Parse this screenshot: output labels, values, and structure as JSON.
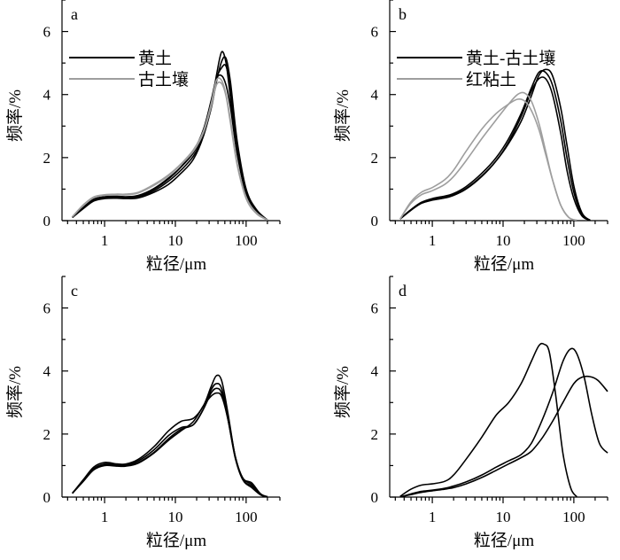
{
  "chart_data": [
    {
      "type": "line",
      "panel": "a",
      "xlabel": "粒径/μm",
      "ylabel": "频率/%",
      "xscale": "log",
      "xlim": [
        0.25,
        300
      ],
      "ylim": [
        0,
        7
      ],
      "xticks": [
        {
          "v": 1,
          "label": "1"
        },
        {
          "v": 10,
          "label": "10"
        },
        {
          "v": 100,
          "label": "100"
        }
      ],
      "yticks": [
        {
          "v": 0,
          "label": "0"
        },
        {
          "v": 2,
          "label": "2"
        },
        {
          "v": 4,
          "label": "4"
        },
        {
          "v": 6,
          "label": "6"
        }
      ],
      "legend": [
        {
          "label": "黄土",
          "color": "#000000"
        },
        {
          "label": "古土壤",
          "color": "#9e9e9e"
        }
      ],
      "series": [
        {
          "color": "#000000",
          "x": [
            0.35,
            0.5,
            0.7,
            1,
            1.5,
            2,
            3,
            5,
            8,
            12,
            18,
            25,
            32,
            38,
            45,
            52,
            60,
            75,
            100,
            140,
            200
          ],
          "y": [
            0.1,
            0.4,
            0.65,
            0.72,
            0.73,
            0.72,
            0.75,
            0.95,
            1.25,
            1.6,
            2.05,
            2.7,
            3.6,
            4.6,
            5.35,
            5.0,
            3.9,
            2.2,
            0.9,
            0.3,
            0.02
          ]
        },
        {
          "color": "#000000",
          "x": [
            0.35,
            0.5,
            0.7,
            1,
            1.5,
            2,
            3,
            5,
            8,
            12,
            18,
            25,
            32,
            38,
            45,
            52,
            60,
            75,
            100,
            140,
            200
          ],
          "y": [
            0.1,
            0.42,
            0.68,
            0.76,
            0.77,
            0.76,
            0.8,
            1.02,
            1.35,
            1.7,
            2.15,
            2.75,
            3.55,
            4.4,
            5.05,
            5.15,
            4.4,
            2.5,
            1.0,
            0.35,
            0.02
          ]
        },
        {
          "color": "#000000",
          "x": [
            0.35,
            0.5,
            0.7,
            1,
            1.5,
            2,
            3,
            5,
            8,
            12,
            18,
            25,
            32,
            38,
            45,
            52,
            60,
            75,
            100,
            140,
            200
          ],
          "y": [
            0.1,
            0.4,
            0.66,
            0.75,
            0.76,
            0.75,
            0.78,
            1.0,
            1.32,
            1.7,
            2.2,
            2.9,
            3.8,
            4.5,
            4.6,
            4.3,
            3.6,
            2.1,
            0.85,
            0.3,
            0.02
          ]
        },
        {
          "color": "#000000",
          "x": [
            0.35,
            0.5,
            0.7,
            1,
            1.5,
            2,
            3,
            5,
            8,
            12,
            18,
            25,
            32,
            38,
            45,
            52,
            60,
            75,
            100,
            140,
            200
          ],
          "y": [
            0.1,
            0.38,
            0.62,
            0.7,
            0.71,
            0.7,
            0.72,
            0.9,
            1.15,
            1.5,
            1.95,
            2.7,
            3.7,
            4.5,
            4.85,
            4.9,
            4.2,
            2.4,
            0.95,
            0.3,
            0.02
          ]
        },
        {
          "color": "#9e9e9e",
          "x": [
            0.35,
            0.5,
            0.7,
            1,
            1.5,
            2,
            3,
            5,
            8,
            12,
            18,
            25,
            32,
            38,
            45,
            52,
            60,
            75,
            100,
            140,
            200
          ],
          "y": [
            0.12,
            0.5,
            0.75,
            0.82,
            0.84,
            0.84,
            0.9,
            1.15,
            1.45,
            1.8,
            2.25,
            2.85,
            3.7,
            4.45,
            4.45,
            4.0,
            3.2,
            1.8,
            0.75,
            0.25,
            0.02
          ]
        },
        {
          "color": "#9e9e9e",
          "x": [
            0.35,
            0.5,
            0.7,
            1,
            1.5,
            2,
            3,
            5,
            8,
            12,
            18,
            25,
            32,
            38,
            45,
            52,
            60,
            75,
            100,
            140,
            200
          ],
          "y": [
            0.12,
            0.48,
            0.73,
            0.8,
            0.82,
            0.82,
            0.88,
            1.12,
            1.42,
            1.78,
            2.2,
            2.8,
            3.6,
            4.3,
            4.35,
            3.95,
            3.1,
            1.75,
            0.7,
            0.22,
            0.02
          ]
        }
      ]
    },
    {
      "type": "line",
      "panel": "b",
      "xlabel": "粒径/μm",
      "ylabel": "频率/%",
      "xscale": "log",
      "xlim": [
        0.25,
        300
      ],
      "ylim": [
        0,
        7
      ],
      "xticks": [
        {
          "v": 1,
          "label": "1"
        },
        {
          "v": 10,
          "label": "10"
        },
        {
          "v": 100,
          "label": "100"
        }
      ],
      "yticks": [
        {
          "v": 0,
          "label": "0"
        },
        {
          "v": 2,
          "label": "2"
        },
        {
          "v": 4,
          "label": "4"
        },
        {
          "v": 6,
          "label": "6"
        }
      ],
      "legend": [
        {
          "label": "黄土-古土壤",
          "color": "#000000"
        },
        {
          "label": "红粘土",
          "color": "#9e9e9e"
        }
      ],
      "series": [
        {
          "color": "#000000",
          "x": [
            0.35,
            0.5,
            0.7,
            1,
            1.5,
            2,
            3,
            5,
            8,
            12,
            18,
            25,
            32,
            40,
            50,
            65,
            80,
            100,
            130,
            170
          ],
          "y": [
            0.05,
            0.35,
            0.55,
            0.65,
            0.72,
            0.8,
            1.0,
            1.4,
            1.9,
            2.5,
            3.3,
            4.1,
            4.5,
            4.5,
            4.0,
            2.8,
            1.6,
            0.7,
            0.15,
            0.01
          ]
        },
        {
          "color": "#000000",
          "x": [
            0.35,
            0.5,
            0.7,
            1,
            1.5,
            2,
            3,
            5,
            8,
            12,
            18,
            25,
            32,
            40,
            50,
            65,
            80,
            100,
            130,
            170
          ],
          "y": [
            0.05,
            0.35,
            0.58,
            0.7,
            0.78,
            0.86,
            1.08,
            1.5,
            2.0,
            2.6,
            3.4,
            4.2,
            4.7,
            4.7,
            4.3,
            3.2,
            2.0,
            0.9,
            0.2,
            0.01
          ]
        },
        {
          "color": "#000000",
          "x": [
            0.35,
            0.5,
            0.7,
            1,
            1.5,
            2,
            3,
            5,
            8,
            12,
            18,
            25,
            32,
            40,
            50,
            65,
            80,
            100,
            130,
            170
          ],
          "y": [
            0.05,
            0.33,
            0.55,
            0.66,
            0.74,
            0.82,
            1.02,
            1.42,
            1.9,
            2.45,
            3.15,
            3.95,
            4.6,
            4.8,
            4.6,
            3.6,
            2.4,
            1.1,
            0.25,
            0.01
          ]
        },
        {
          "color": "#9e9e9e",
          "x": [
            0.35,
            0.5,
            0.7,
            1,
            1.5,
            2,
            3,
            5,
            8,
            12,
            16,
            20,
            25,
            32,
            40,
            50,
            65,
            85,
            110
          ],
          "y": [
            0.05,
            0.6,
            0.9,
            1.05,
            1.3,
            1.6,
            2.2,
            2.9,
            3.4,
            3.7,
            3.85,
            3.8,
            3.5,
            2.9,
            2.1,
            1.3,
            0.5,
            0.1,
            0.01
          ]
        },
        {
          "color": "#9e9e9e",
          "x": [
            0.35,
            0.5,
            0.7,
            1,
            1.5,
            2,
            3,
            5,
            8,
            12,
            16,
            20,
            25,
            32,
            40,
            50,
            65,
            85,
            110
          ],
          "y": [
            0.05,
            0.55,
            0.82,
            0.95,
            1.15,
            1.4,
            1.9,
            2.6,
            3.2,
            3.7,
            4.0,
            4.05,
            3.8,
            3.1,
            2.2,
            1.3,
            0.5,
            0.1,
            0.01
          ]
        }
      ]
    },
    {
      "type": "line",
      "panel": "c",
      "xlabel": "粒径/μm",
      "ylabel": "频率/%",
      "xscale": "log",
      "xlim": [
        0.25,
        300
      ],
      "ylim": [
        0,
        7
      ],
      "xticks": [
        {
          "v": 1,
          "label": "1"
        },
        {
          "v": 10,
          "label": "10"
        },
        {
          "v": 100,
          "label": "100"
        }
      ],
      "yticks": [
        {
          "v": 0,
          "label": "0"
        },
        {
          "v": 2,
          "label": "2"
        },
        {
          "v": 4,
          "label": "4"
        },
        {
          "v": 6,
          "label": "6"
        }
      ],
      "legend": [],
      "series": [
        {
          "color": "#000000",
          "x": [
            0.35,
            0.5,
            0.7,
            1,
            1.5,
            2,
            3,
            5,
            8,
            12,
            18,
            25,
            32,
            38,
            45,
            55,
            70,
            90,
            120,
            160,
            200
          ],
          "y": [
            0.12,
            0.55,
            0.95,
            1.1,
            1.05,
            1.05,
            1.2,
            1.6,
            2.1,
            2.4,
            2.5,
            2.9,
            3.5,
            3.85,
            3.7,
            2.7,
            1.3,
            0.6,
            0.45,
            0.1,
            0.01
          ]
        },
        {
          "color": "#000000",
          "x": [
            0.35,
            0.5,
            0.7,
            1,
            1.5,
            2,
            3,
            5,
            8,
            12,
            18,
            25,
            32,
            38,
            45,
            55,
            70,
            90,
            120,
            160,
            200
          ],
          "y": [
            0.12,
            0.52,
            0.9,
            1.05,
            1.02,
            1.02,
            1.15,
            1.5,
            1.95,
            2.2,
            2.3,
            2.8,
            3.4,
            3.6,
            3.45,
            2.6,
            1.3,
            0.6,
            0.4,
            0.1,
            0.01
          ]
        },
        {
          "color": "#000000",
          "x": [
            0.35,
            0.5,
            0.7,
            1,
            1.5,
            2,
            3,
            5,
            8,
            12,
            18,
            25,
            32,
            38,
            45,
            55,
            70,
            90,
            120,
            160,
            200
          ],
          "y": [
            0.12,
            0.5,
            0.88,
            1.02,
            1.0,
            1.0,
            1.1,
            1.42,
            1.85,
            2.15,
            2.3,
            2.8,
            3.3,
            3.45,
            3.3,
            2.5,
            1.25,
            0.55,
            0.35,
            0.08,
            0.01
          ]
        },
        {
          "color": "#000000",
          "x": [
            0.35,
            0.5,
            0.7,
            1,
            1.5,
            2,
            3,
            5,
            8,
            12,
            18,
            25,
            32,
            38,
            45,
            55,
            70,
            90,
            120,
            160,
            200
          ],
          "y": [
            0.12,
            0.5,
            0.86,
            1.0,
            0.98,
            0.98,
            1.08,
            1.4,
            1.8,
            2.1,
            2.4,
            2.9,
            3.2,
            3.3,
            3.2,
            2.5,
            1.3,
            0.55,
            0.3,
            0.07,
            0.01
          ]
        }
      ]
    },
    {
      "type": "line",
      "panel": "d",
      "xlabel": "粒径/μm",
      "ylabel": "频率/%",
      "xscale": "log",
      "xlim": [
        0.25,
        300
      ],
      "ylim": [
        0,
        7
      ],
      "xticks": [
        {
          "v": 1,
          "label": "1"
        },
        {
          "v": 10,
          "label": "10"
        },
        {
          "v": 100,
          "label": "100"
        }
      ],
      "yticks": [
        {
          "v": 0,
          "label": "0"
        },
        {
          "v": 2,
          "label": "2"
        },
        {
          "v": 4,
          "label": "4"
        },
        {
          "v": 6,
          "label": "6"
        }
      ],
      "legend": [],
      "series": [
        {
          "color": "#000000",
          "x": [
            0.35,
            0.5,
            0.7,
            1,
            1.5,
            2,
            3,
            5,
            8,
            12,
            18,
            25,
            32,
            38,
            45,
            55,
            70,
            90,
            110
          ],
          "y": [
            0.02,
            0.25,
            0.38,
            0.42,
            0.5,
            0.7,
            1.2,
            1.9,
            2.6,
            3.0,
            3.6,
            4.3,
            4.8,
            4.85,
            4.6,
            3.3,
            1.4,
            0.3,
            0.01
          ]
        },
        {
          "color": "#000000",
          "x": [
            0.35,
            0.5,
            0.7,
            1,
            1.5,
            2,
            3,
            5,
            8,
            12,
            18,
            25,
            35,
            50,
            70,
            90,
            110,
            140,
            180,
            230,
            300
          ],
          "y": [
            0.0,
            0.1,
            0.18,
            0.22,
            0.28,
            0.35,
            0.48,
            0.7,
            0.95,
            1.15,
            1.35,
            1.7,
            2.4,
            3.3,
            4.3,
            4.7,
            4.55,
            3.8,
            2.6,
            1.7,
            1.4
          ]
        },
        {
          "color": "#000000",
          "x": [
            0.35,
            0.5,
            0.7,
            1,
            1.5,
            2,
            3,
            5,
            8,
            12,
            18,
            25,
            35,
            50,
            70,
            100,
            130,
            170,
            220,
            300
          ],
          "y": [
            0.0,
            0.08,
            0.15,
            0.2,
            0.25,
            0.3,
            0.42,
            0.62,
            0.85,
            1.05,
            1.25,
            1.45,
            1.85,
            2.4,
            3.0,
            3.6,
            3.8,
            3.82,
            3.7,
            3.35
          ]
        }
      ]
    }
  ]
}
